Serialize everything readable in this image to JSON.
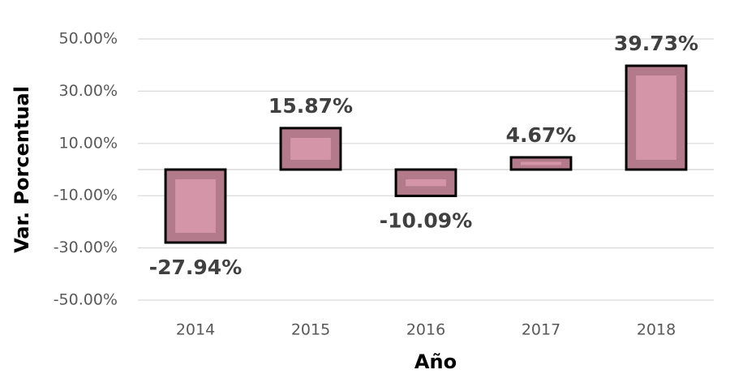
{
  "chart_data": {
    "type": "bar",
    "x_label": "Año",
    "y_label": "Var. Porcentual",
    "categories": [
      "2014",
      "2015",
      "2016",
      "2017",
      "2018"
    ],
    "values": [
      -27.94,
      15.87,
      -10.09,
      4.67,
      39.73
    ],
    "value_labels": [
      "-27.94%",
      "15.87%",
      "-10.09%",
      "4.67%",
      "39.73%"
    ],
    "color": "#b37a8c",
    "ylim": [
      -50,
      50
    ],
    "yticks": [
      {
        "value": -50,
        "label": "-50.00%"
      },
      {
        "value": -30,
        "label": "-30.00%"
      },
      {
        "value": -10,
        "label": "-10.00%"
      },
      {
        "value": 10,
        "label": "10.00%"
      },
      {
        "value": 30,
        "label": "30.00%"
      },
      {
        "value": 50,
        "label": "50.00%"
      }
    ],
    "grid": true
  }
}
